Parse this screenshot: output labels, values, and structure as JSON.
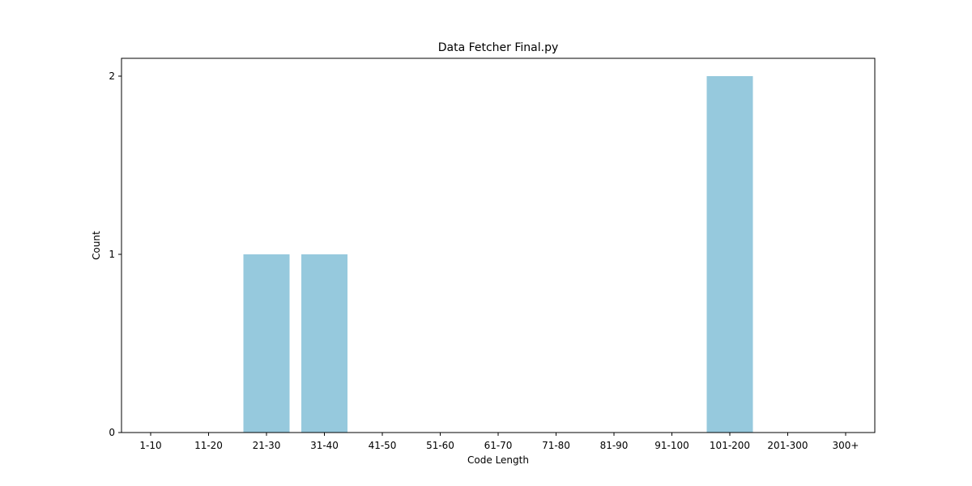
{
  "chart_data": {
    "type": "bar",
    "title": "Data Fetcher Final.py",
    "xlabel": "Code Length",
    "ylabel": "Count",
    "categories": [
      "1-10",
      "11-20",
      "21-30",
      "31-40",
      "41-50",
      "51-60",
      "61-70",
      "71-80",
      "81-90",
      "91-100",
      "101-200",
      "201-300",
      "300+"
    ],
    "values": [
      0,
      0,
      1,
      1,
      0,
      0,
      0,
      0,
      0,
      0,
      2,
      0,
      0
    ],
    "yticks": [
      "0",
      "1",
      "2"
    ],
    "ylim": [
      0,
      2.1
    ],
    "grid": false,
    "legend": "none",
    "bar_color": "#96c9dd"
  }
}
